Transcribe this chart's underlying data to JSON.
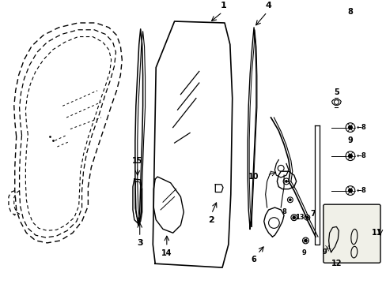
{
  "background_color": "#ffffff",
  "line_color": "#000000",
  "gray_color": "#888888",
  "light_gray": "#cccccc",
  "box_fill": "#f0f0e8"
}
